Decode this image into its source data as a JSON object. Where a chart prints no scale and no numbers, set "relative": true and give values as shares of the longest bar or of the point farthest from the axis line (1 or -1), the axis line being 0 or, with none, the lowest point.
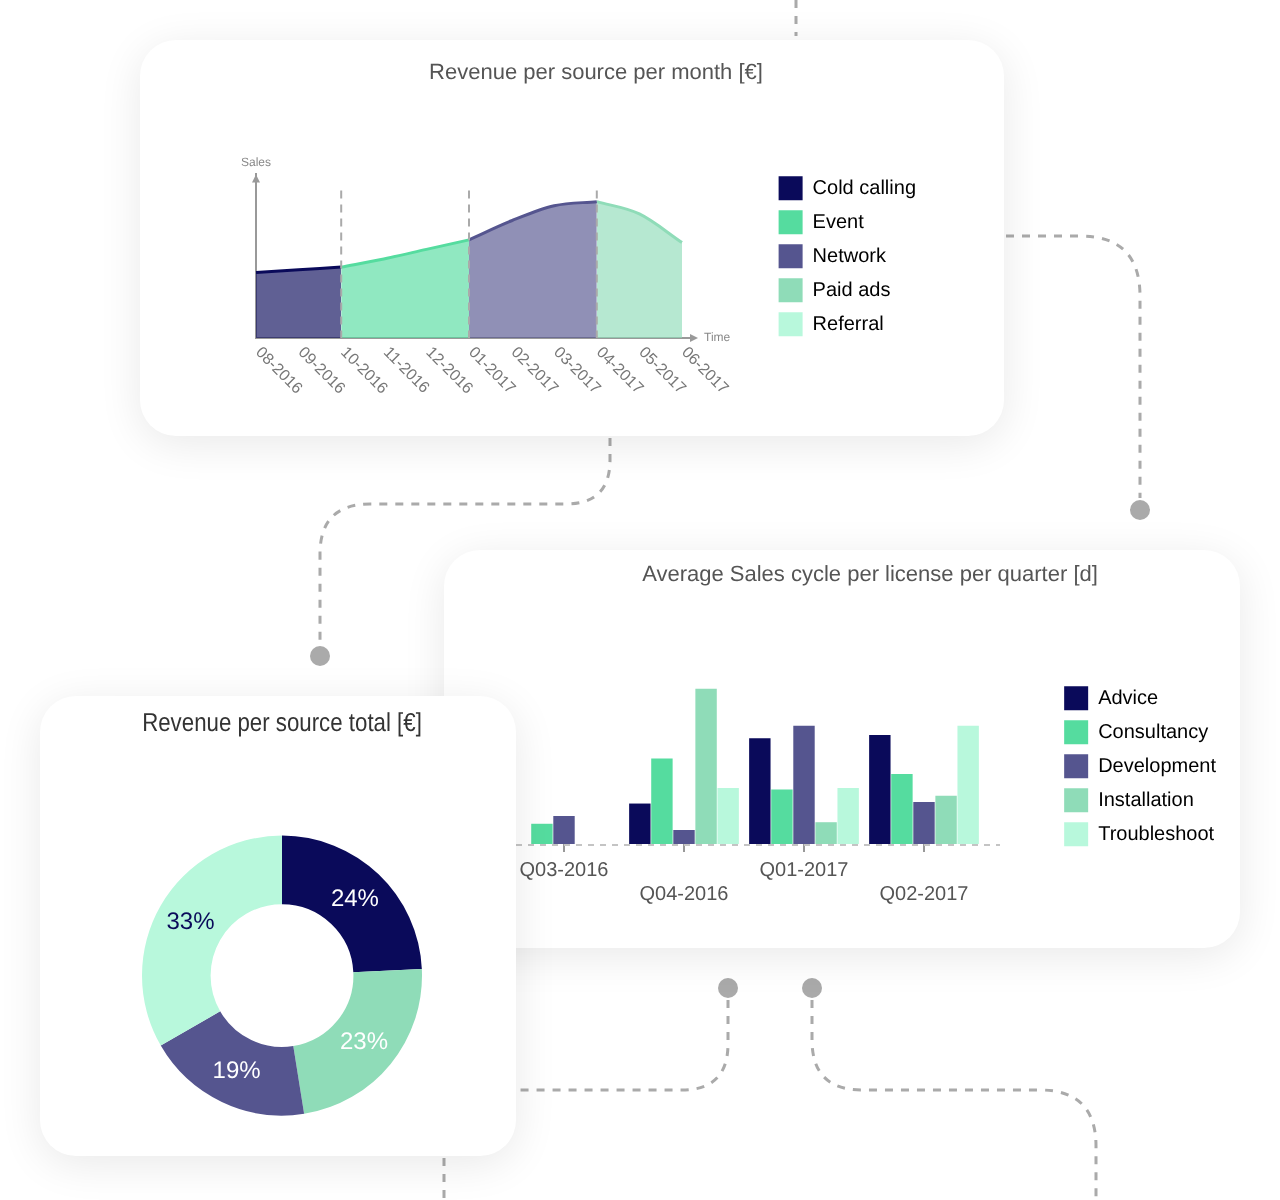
{
  "chart_data": [
    {
      "type": "area",
      "title": "Revenue per source per month [€]",
      "xlabel": "Time",
      "ylabel": "Sales",
      "relative": true,
      "legend": "right",
      "categories": [
        "08-2016",
        "09-2016",
        "10-2016",
        "11-2016",
        "12-2016",
        "01-2017",
        "02-2017",
        "03-2017",
        "04-2017",
        "05-2017",
        "06-2017"
      ],
      "series": [
        {
          "name": "Cold calling",
          "color": "#0a0a5a",
          "values": [
            0.48,
            0.5,
            0.52,
            null,
            null,
            null,
            null,
            null,
            null,
            null,
            null
          ]
        },
        {
          "name": "Event",
          "color": "#55dc9f",
          "values": [
            null,
            null,
            0.52,
            0.58,
            0.65,
            0.72,
            null,
            null,
            null,
            null,
            null
          ]
        },
        {
          "name": "Network",
          "color": "#55558f",
          "values": [
            null,
            null,
            null,
            null,
            null,
            0.72,
            0.86,
            0.97,
            1.0,
            null,
            null
          ]
        },
        {
          "name": "Paid ads",
          "color": "#8fdcb8",
          "values": [
            null,
            null,
            null,
            null,
            null,
            null,
            null,
            null,
            1.0,
            0.91,
            0.7
          ]
        },
        {
          "name": "Referral",
          "color": "#b8f8dc",
          "values": [
            null,
            null,
            null,
            null,
            null,
            null,
            null,
            null,
            null,
            null,
            null
          ]
        }
      ],
      "ref_lines": [
        {
          "axis": "x",
          "value": "10-2016",
          "color": "#aaaaaa",
          "line_style": "dashed"
        },
        {
          "axis": "x",
          "value": "01-2017",
          "color": "#aaaaaa",
          "line_style": "dashed"
        },
        {
          "axis": "x",
          "value": "04-2017",
          "color": "#aaaaaa",
          "line_style": "dashed"
        }
      ]
    },
    {
      "type": "bar",
      "title": "Average Sales cycle per license per quarter [d]",
      "relative": true,
      "legend": "right",
      "categories": [
        "Q03-2016",
        "Q04-2016",
        "Q01-2017",
        "Q02-2017"
      ],
      "series": [
        {
          "name": "Advice",
          "color": "#0a0a5a",
          "values": [
            null,
            0.26,
            0.68,
            0.7
          ]
        },
        {
          "name": "Consultancy",
          "color": "#55dc9f",
          "values": [
            0.13,
            0.55,
            0.35,
            0.45
          ]
        },
        {
          "name": "Development",
          "color": "#55558f",
          "values": [
            0.18,
            0.09,
            0.76,
            0.27
          ]
        },
        {
          "name": "Installation",
          "color": "#8fdcb8",
          "values": [
            null,
            1.0,
            0.14,
            0.31
          ]
        },
        {
          "name": "Troubleshoot",
          "color": "#b8f8dc",
          "values": [
            null,
            0.36,
            0.36,
            0.76
          ]
        }
      ]
    },
    {
      "type": "donut",
      "title": "Revenue per source total [€]",
      "categories": [
        null,
        null,
        null,
        null
      ],
      "values": [
        24,
        23,
        19,
        33
      ],
      "colors": [
        "#0a0a5a",
        "#8fdcb8",
        "#55558f",
        "#b8f8dc"
      ],
      "value_labels": [
        "24%",
        "23%",
        "19%",
        "33%"
      ]
    }
  ]
}
